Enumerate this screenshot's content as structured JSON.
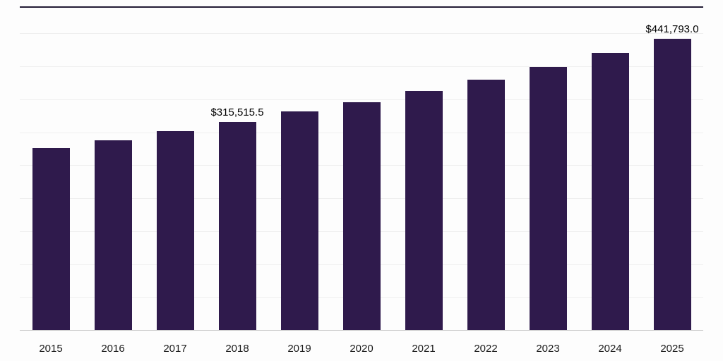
{
  "chart_data": {
    "type": "bar",
    "title": "",
    "xlabel": "",
    "ylabel": "",
    "categories": [
      "2015",
      "2016",
      "2017",
      "2018",
      "2019",
      "2020",
      "2021",
      "2022",
      "2023",
      "2024",
      "2025"
    ],
    "values": [
      275800,
      288300,
      301500,
      315515.5,
      331500,
      345800,
      362800,
      380200,
      399300,
      420600,
      441793.0
    ],
    "data_labels": [
      {
        "index": 3,
        "text": "$315,515.5"
      },
      {
        "index": 10,
        "text": "$441,793.0"
      }
    ],
    "ylim": [
      0,
      490000
    ],
    "grid": true,
    "gridline_step": 50000,
    "legend": "none",
    "bar_color": "#2f1a4c",
    "grid_color": "#efefef",
    "axis_line_color": "#c9c9c9",
    "top_border_color": "#221c35",
    "label_color": "#1a1a1a"
  }
}
